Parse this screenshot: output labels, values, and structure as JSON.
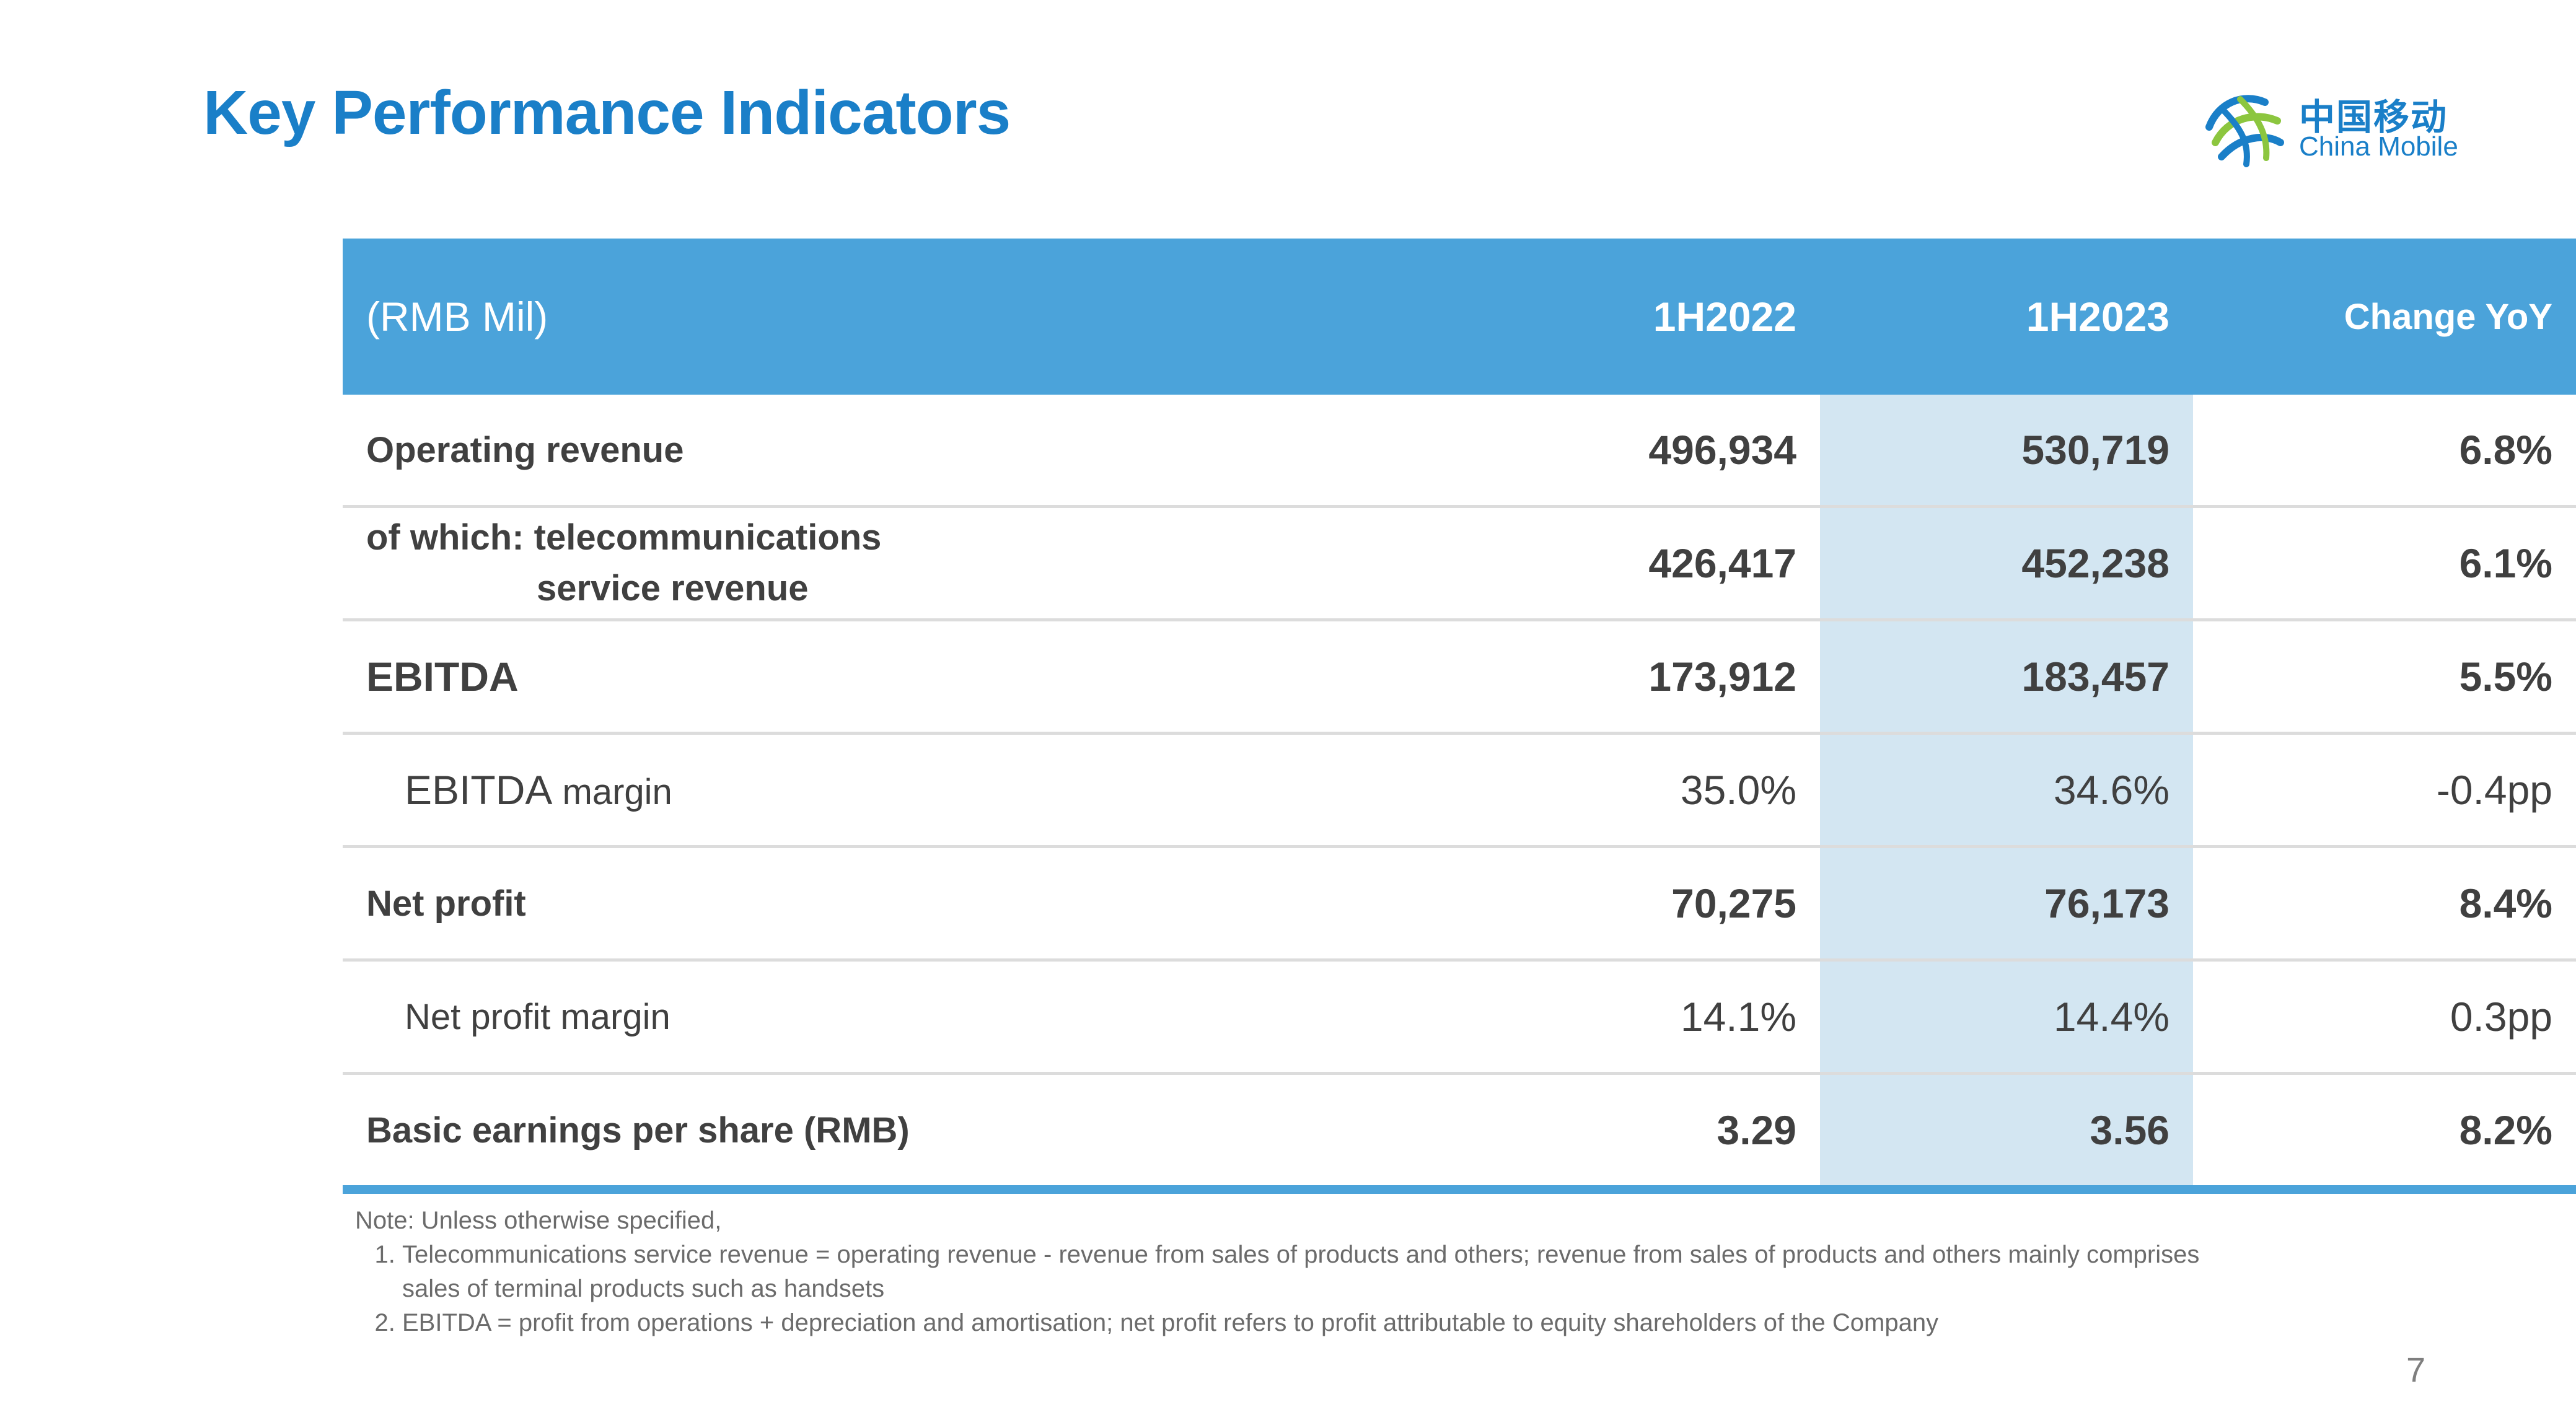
{
  "slide": {
    "title": "Key Performance Indicators",
    "page_number": "7"
  },
  "logo": {
    "name_cn": "中国移动",
    "name_en": "China Mobile",
    "icon": "china-mobile-logo",
    "colors": {
      "blue": "#1a7fc8",
      "green": "#8cc63f"
    }
  },
  "colors": {
    "title": "#1a7fc8",
    "header_bg": "#4ba3da",
    "highlight_col": "#d3e6f2",
    "text": "#404040"
  },
  "table": {
    "header": [
      "(RMB Mil)",
      "1H2022",
      "1H2023",
      "Change YoY"
    ],
    "rows": [
      {
        "label": "Operating revenue",
        "h2022": "496,934",
        "h2023": "530,719",
        "change": "6.8%"
      },
      {
        "label_line1": "of which: telecommunications",
        "label_line2": "service revenue",
        "h2022": "426,417",
        "h2023": "452,238",
        "change": "6.1%"
      },
      {
        "label": "EBITDA",
        "h2022": "173,912",
        "h2023": "183,457",
        "change": "5.5%"
      },
      {
        "label_a": "EBITDA",
        "label_b": " margin",
        "h2022": "35.0%",
        "h2023": "34.6%",
        "change": "-0.4pp"
      },
      {
        "label": "Net profit",
        "h2022": "70,275",
        "h2023": "76,173",
        "change": "8.4%"
      },
      {
        "label": "Net profit margin",
        "h2022": "14.1%",
        "h2023": "14.4%",
        "change": "0.3pp"
      },
      {
        "label": "Basic earnings per share (RMB)",
        "h2022": "3.29",
        "h2023": "3.56",
        "change": "8.2%"
      }
    ]
  },
  "notes": {
    "intro": "Note: Unless otherwise specified,",
    "items": [
      "Telecommunications service revenue = operating revenue - revenue from sales of products and others; revenue from sales of products and others mainly comprises sales of terminal products such as handsets",
      "EBITDA = profit from operations + depreciation and amortisation; net profit refers to profit attributable to equity shareholders of the Company"
    ]
  }
}
